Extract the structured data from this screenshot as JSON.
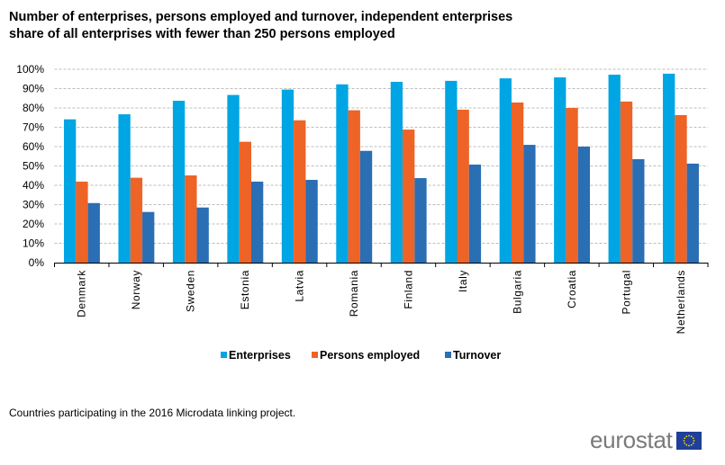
{
  "title": {
    "line1": "Number of enterprises, persons employed and turnover, independent enterprises",
    "line2": "share of all enterprises with fewer than 250 persons employed"
  },
  "footnote": "Countries participating in the 2016 Microdata linking project.",
  "logo": {
    "text": "eurostat",
    "flag_icon": "eu-flag-icon"
  },
  "chart_data": {
    "type": "bar",
    "title": "Number of enterprises, persons employed and turnover, independent enterprises share of all enterprises with fewer than 250 persons employed",
    "xlabel": "",
    "ylabel": "",
    "ylim": [
      0,
      100
    ],
    "yticks": [
      0,
      10,
      20,
      30,
      40,
      50,
      60,
      70,
      80,
      90,
      100
    ],
    "ytick_labels": [
      "0%",
      "10%",
      "20%",
      "30%",
      "40%",
      "50%",
      "60%",
      "70%",
      "80%",
      "90%",
      "100%"
    ],
    "grid": true,
    "legend_position": "bottom-center",
    "categories": [
      "Denmark",
      "Norway",
      "Sweden",
      "Estonia",
      "Latvia",
      "Romania",
      "Finland",
      "Italy",
      "Bulgaria",
      "Croatia",
      "Portugal",
      "Netherlands"
    ],
    "series": [
      {
        "name": "Enterprises",
        "color": "#00A5E3",
        "values": [
          74.1,
          76.7,
          83.7,
          86.7,
          89.5,
          92.2,
          93.5,
          94.0,
          95.3,
          95.8,
          97.2,
          97.7
        ]
      },
      {
        "name": "Persons employed",
        "color": "#EE6326",
        "values": [
          41.9,
          43.9,
          45.1,
          62.5,
          73.6,
          78.8,
          68.8,
          79.1,
          82.8,
          80.0,
          83.3,
          76.3
        ]
      },
      {
        "name": "Turnover",
        "color": "#2A6EB4",
        "values": [
          30.8,
          26.2,
          28.5,
          41.9,
          42.8,
          57.8,
          43.7,
          50.7,
          60.9,
          60.0,
          53.5,
          51.2
        ]
      }
    ]
  }
}
